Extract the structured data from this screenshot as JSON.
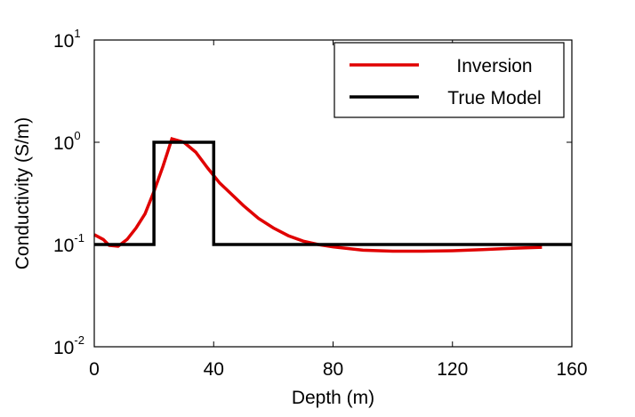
{
  "chart_data": {
    "type": "line",
    "title": "",
    "xlabel": "Depth (m)",
    "ylabel": "Conductivity (S/m)",
    "xlim": [
      0,
      160
    ],
    "ylim": [
      0.01,
      10
    ],
    "yscale": "log",
    "grid": false,
    "legend_position": "top-right",
    "x_ticks": [
      {
        "value": 0,
        "label": "0"
      },
      {
        "value": 40,
        "label": "40"
      },
      {
        "value": 80,
        "label": "80"
      },
      {
        "value": 120,
        "label": "120"
      },
      {
        "value": 160,
        "label": "160"
      }
    ],
    "y_ticks": [
      {
        "value": 0.01,
        "base": "10",
        "exponent": "-2"
      },
      {
        "value": 0.1,
        "base": "10",
        "exponent": "-1"
      },
      {
        "value": 1,
        "base": "10",
        "exponent": "0"
      },
      {
        "value": 10,
        "base": "10",
        "exponent": "1"
      }
    ],
    "series": [
      {
        "name": "Inversion",
        "color": "#e00000",
        "x": [
          0,
          3,
          5,
          8,
          11,
          14,
          17,
          20,
          23,
          26,
          30,
          34,
          38,
          42,
          46,
          50,
          55,
          60,
          65,
          70,
          75,
          80,
          90,
          100,
          110,
          120,
          130,
          140,
          150
        ],
        "y": [
          0.125,
          0.112,
          0.098,
          0.096,
          0.112,
          0.145,
          0.2,
          0.33,
          0.58,
          1.08,
          1.0,
          0.8,
          0.56,
          0.4,
          0.31,
          0.24,
          0.18,
          0.145,
          0.122,
          0.108,
          0.1,
          0.095,
          0.088,
          0.086,
          0.086,
          0.087,
          0.089,
          0.092,
          0.094
        ]
      },
      {
        "name": "True Model",
        "color": "#000000",
        "x": [
          0,
          20,
          20,
          40,
          40,
          160
        ],
        "y": [
          0.1,
          0.1,
          1,
          1,
          0.1,
          0.1
        ]
      }
    ]
  }
}
